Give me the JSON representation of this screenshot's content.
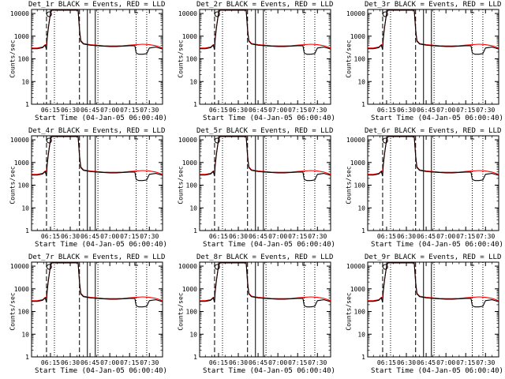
{
  "chart_data": [
    {
      "type": "line",
      "title": "Det_1r BLACK = Events, RED = LLD"
    },
    {
      "type": "line",
      "title": "Det_2r BLACK = Events, RED = LLD"
    },
    {
      "type": "line",
      "title": "Det_3r BLACK = Events, RED = LLD"
    },
    {
      "type": "line",
      "title": "Det_4r BLACK = Events, RED = LLD"
    },
    {
      "type": "line",
      "title": "Det_5r BLACK = Events, RED = LLD"
    },
    {
      "type": "line",
      "title": "Det_6r BLACK = Events, RED = LLD"
    },
    {
      "type": "line",
      "title": "Det_7r BLACK = Events, RED = LLD"
    },
    {
      "type": "line",
      "title": "Det_8r BLACK = Events, RED = LLD"
    },
    {
      "type": "line",
      "title": "Det_9r BLACK = Events, RED = LLD"
    }
  ],
  "shared": {
    "xlabel": "Start Time (04-Jan-05 06:00:40)",
    "ylabel": "Counts/sec",
    "xticks": [
      "06:15",
      "06:30",
      "06:45",
      "07:00",
      "07:15",
      "07:30"
    ],
    "xtick_minutes": [
      15,
      30,
      45,
      60,
      75,
      90
    ],
    "xlim_minutes": [
      0.67,
      100
    ],
    "yticks": [
      "1",
      "10",
      "100",
      "1000",
      "10000"
    ],
    "ytick_values": [
      1,
      10,
      100,
      1000,
      10000
    ],
    "ylim": [
      1,
      15000
    ],
    "yscale": "log",
    "colors": {
      "events": "#000000",
      "lld": "#ff0000"
    },
    "vlines": [
      {
        "minute": 12,
        "style": "dashed"
      },
      {
        "minute": 18,
        "style": "dotted"
      },
      {
        "minute": 37,
        "style": "dashed"
      },
      {
        "minute": 43,
        "style": "solid"
      },
      {
        "minute": 49,
        "style": "solid"
      },
      {
        "minute": 51,
        "style": "dotted"
      },
      {
        "minute": 80,
        "style": "dotted"
      },
      {
        "minute": 88,
        "style": "dotted"
      }
    ],
    "events_series": {
      "name": "Events",
      "x": [
        0.67,
        5,
        9,
        11,
        12,
        12.5,
        13.5,
        15,
        16,
        17,
        36,
        37,
        37.5,
        38,
        40,
        45,
        50,
        55,
        60,
        65,
        70,
        75,
        79,
        80,
        82,
        85,
        88,
        90,
        95,
        100
      ],
      "y": [
        280,
        280,
        310,
        400,
        250,
        800,
        2500,
        10000,
        14000,
        14000,
        14000,
        2000,
        1000,
        600,
        450,
        400,
        380,
        360,
        350,
        350,
        360,
        380,
        380,
        180,
        160,
        160,
        170,
        300,
        330,
        270
      ]
    },
    "lld_series": {
      "name": "LLD",
      "x": [
        0.67,
        5,
        9,
        11,
        12,
        12.5,
        13.5,
        15,
        16,
        17,
        36,
        37,
        37.5,
        38,
        40,
        45,
        50,
        55,
        60,
        65,
        70,
        75,
        80,
        85,
        90,
        95,
        100
      ],
      "y": [
        300,
        300,
        330,
        420,
        400,
        900,
        2600,
        10000,
        14000,
        14000,
        14000,
        2200,
        1100,
        650,
        480,
        420,
        400,
        380,
        370,
        370,
        380,
        400,
        420,
        440,
        420,
        380,
        300
      ]
    }
  }
}
